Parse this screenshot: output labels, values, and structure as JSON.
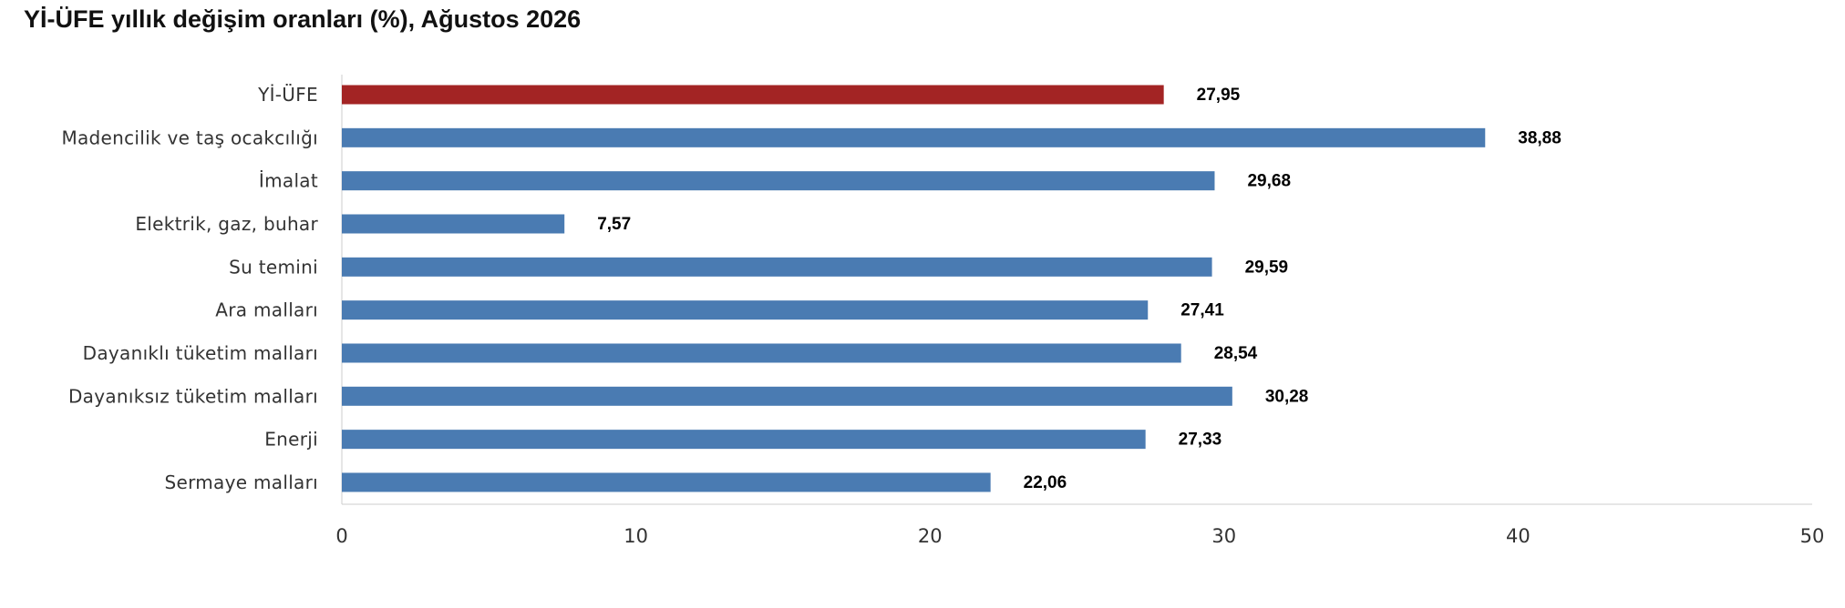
{
  "chart_data": {
    "type": "bar",
    "orientation": "horizontal",
    "title": "Yİ-ÜFE yıllık değişim oranları (%), Ağustos 2026",
    "categories": [
      "Yİ-ÜFE",
      "Madencilik ve taş ocakcılığı",
      "İmalat",
      "Elektrik, gaz, buhar",
      "Su temini",
      "Ara malları",
      "Dayanıklı tüketim malları",
      "Dayanıksız tüketim malları",
      "Enerji",
      "Sermaye malları"
    ],
    "values": [
      27.95,
      38.88,
      29.68,
      7.57,
      29.59,
      27.41,
      28.54,
      30.28,
      27.33,
      22.06
    ],
    "value_labels": [
      "27,95",
      "38,88",
      "29,68",
      "7,57",
      "29,59",
      "27,41",
      "28,54",
      "30,28",
      "27,33",
      "22,06"
    ],
    "xlim": [
      0,
      50
    ],
    "xticks": [
      "0",
      "10",
      "20",
      "30",
      "40",
      "50"
    ],
    "xlabel": "",
    "ylabel": "",
    "grid": false,
    "legend": "none",
    "colors": {
      "highlight": "#A32424",
      "default": "#4A7BB2",
      "axis": "#CCCCCC"
    },
    "highlight_index": 0
  }
}
